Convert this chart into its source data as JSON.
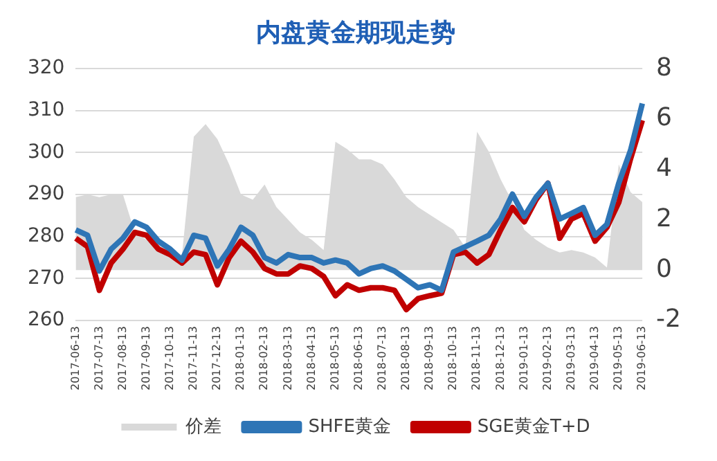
{
  "chart_data": {
    "type": "line",
    "title": "内盘黄金期现走势",
    "categories": [
      "2017-06-13",
      null,
      "2017-07-13",
      null,
      "2017-08-13",
      null,
      "2017-09-13",
      null,
      "2017-10-13",
      null,
      "2017-11-13",
      null,
      "2017-12-13",
      null,
      "2018-01-13",
      null,
      "2018-02-13",
      null,
      "2018-03-13",
      null,
      "2018-04-13",
      null,
      "2018-05-13",
      null,
      "2018-06-13",
      null,
      "2018-07-13",
      null,
      "2018-08-13",
      null,
      "2018-09-13",
      null,
      "2018-10-13",
      null,
      "2018-11-13",
      null,
      "2018-12-13",
      null,
      "2019-01-13",
      null,
      "2019-02-13",
      null,
      "2019-03-13",
      null,
      "2019-04-13",
      null,
      "2019-05-13",
      null,
      "2019-06-13"
    ],
    "series": [
      {
        "name": "价差",
        "type": "area",
        "axis": "y2",
        "color": "#d9d9d9",
        "values": [
          2.9,
          3.0,
          2.9,
          3.0,
          3.0,
          1.5,
          1.2,
          1.0,
          0.8,
          0.6,
          5.3,
          5.8,
          5.2,
          4.2,
          3.0,
          2.8,
          3.4,
          2.5,
          2.0,
          1.5,
          1.2,
          0.8,
          5.1,
          4.8,
          4.4,
          4.4,
          4.2,
          3.6,
          2.9,
          2.5,
          2.2,
          1.9,
          1.6,
          0.9,
          5.5,
          4.7,
          3.6,
          2.7,
          1.6,
          1.2,
          0.9,
          0.7,
          0.8,
          0.7,
          0.5,
          0.1,
          4.2,
          3.1,
          2.7
        ]
      },
      {
        "name": "SHFE黄金",
        "color": "#2e75b6",
        "values": [
          281.6,
          280.3,
          271.8,
          277,
          279.6,
          283.5,
          282.2,
          278.9,
          277,
          274.4,
          280.3,
          279.6,
          273,
          277,
          282.2,
          280.3,
          275,
          273.7,
          275.7,
          275,
          275,
          273.7,
          274.4,
          273.7,
          271.1,
          272.4,
          273,
          271.8,
          269.8,
          267.8,
          268.5,
          267.2,
          276.3,
          277.6,
          278.9,
          280.3,
          284.2,
          290.1,
          284.8,
          289.4,
          292.7,
          284.2,
          285.5,
          286.9,
          280.3,
          282.9,
          292.7,
          300.5,
          311.7
        ]
      },
      {
        "name": "SGE黄金T+D",
        "color": "#c00000",
        "values": [
          279.6,
          277.6,
          267.2,
          273.7,
          277,
          281,
          280.3,
          277,
          275.7,
          273.7,
          276.3,
          275.7,
          268.5,
          275,
          278.9,
          276.3,
          272.4,
          271.1,
          271.1,
          273,
          272.4,
          270.5,
          265.9,
          268.5,
          267.2,
          267.8,
          267.8,
          267.2,
          262.6,
          265.2,
          265.9,
          266.5,
          275.7,
          276.3,
          273.7,
          275.7,
          281.6,
          286.9,
          283.5,
          288.8,
          292.7,
          279.6,
          284.2,
          285.5,
          278.9,
          282.2,
          288.1,
          298.5,
          307.7
        ]
      }
    ],
    "ylim": [
      260,
      320
    ],
    "yticks": [
      260,
      270,
      280,
      290,
      300,
      310,
      320
    ],
    "y2lim": [
      -2,
      8
    ],
    "y2ticks": [
      -2,
      0,
      2,
      4,
      6,
      8
    ],
    "grid": "y",
    "legend": "bottom",
    "marker": "none",
    "line_style": "solid"
  }
}
